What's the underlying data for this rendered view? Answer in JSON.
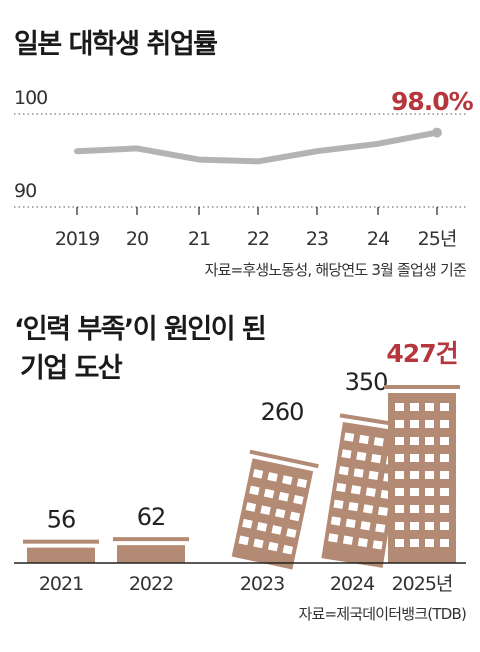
{
  "chart_data": [
    {
      "type": "line",
      "title": "일본 대학생 취업률",
      "categories": [
        "2019",
        "20",
        "21",
        "22",
        "23",
        "24",
        "25년"
      ],
      "series": [
        {
          "values": [
            96.0,
            96.3,
            95.1,
            94.9,
            96.0,
            96.8,
            98.0
          ]
        }
      ],
      "ylim": [
        90,
        100
      ],
      "yticks": [
        "100",
        "90"
      ],
      "highlight_label": "98.0%",
      "source": "자료=후생노동성, 해당연도 3월 졸업생 기준",
      "grid": true,
      "colors": {
        "line": "#b3b3b3",
        "highlight": "#b5373d"
      }
    },
    {
      "type": "bar",
      "title_lines": [
        "‘인력 부족’이 원인이 된",
        "기업 도산"
      ],
      "categories": [
        "2021",
        "2022",
        "2023",
        "2024",
        "2025년"
      ],
      "values": [
        56,
        62,
        260,
        350,
        427
      ],
      "labels": [
        "56",
        "62",
        "260",
        "350",
        "427건"
      ],
      "source": "자료=제국데이터뱅크(TDB)",
      "colors": {
        "building": "#b38a73",
        "window": "#ffffff",
        "highlight": "#b5373d"
      }
    }
  ]
}
